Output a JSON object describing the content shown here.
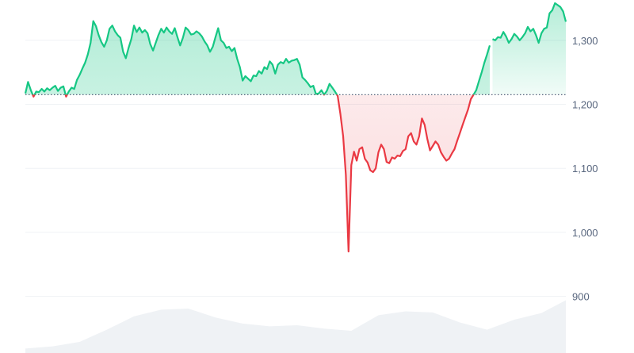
{
  "chart_data": {
    "type": "area",
    "title": "",
    "xlabel": "",
    "ylabel": "",
    "baseline": 1215,
    "ylim": [
      850,
      1360
    ],
    "y_ticks": [
      {
        "value": 900,
        "label": "900"
      },
      {
        "value": 1000,
        "label": "1,000"
      },
      {
        "value": 1100,
        "label": "1,100"
      },
      {
        "value": 1200,
        "label": "1,200"
      },
      {
        "value": 1300,
        "label": "1,300"
      }
    ],
    "grid": true,
    "legend": "none",
    "colors": {
      "up_line": "#16c784",
      "down_line": "#ea3943",
      "up_fill": "#16c784",
      "down_fill": "#ea3943",
      "grid": "#eff2f5",
      "baseline": "#58667e",
      "volume": "#eff2f5",
      "tick_label": "#58667e"
    },
    "series": [
      {
        "type": "line",
        "x": [
          0,
          1,
          2,
          3,
          4,
          5,
          6,
          7,
          8,
          9,
          10,
          11,
          12,
          13,
          14,
          15,
          16,
          17,
          18,
          19,
          20,
          21,
          22,
          23,
          24,
          25,
          26,
          27,
          28,
          29,
          30,
          31,
          32,
          33,
          34,
          35,
          36,
          37,
          38,
          39,
          40,
          41,
          42,
          43,
          44,
          45,
          46,
          47,
          48,
          49,
          50,
          51,
          52,
          53,
          54,
          55,
          56,
          57,
          58,
          59,
          60,
          61,
          62,
          63,
          64,
          65,
          66,
          67,
          68,
          69,
          70,
          71,
          72,
          73,
          74,
          75,
          76,
          77,
          78,
          79,
          80,
          81,
          82,
          83,
          84,
          85,
          86,
          87,
          88,
          89,
          90,
          91,
          92,
          93,
          94,
          95,
          96,
          97,
          98,
          99,
          100,
          101,
          102,
          103,
          104,
          105,
          106,
          107,
          108,
          109,
          110,
          111,
          112,
          113,
          114,
          115,
          116,
          117,
          118,
          119,
          120,
          121,
          122,
          123,
          124,
          125,
          126,
          127,
          128,
          129,
          130,
          131,
          132,
          133,
          134,
          135,
          136,
          137,
          138,
          139,
          140,
          141,
          142,
          143,
          144,
          145,
          146,
          147,
          148,
          149,
          150,
          151,
          152,
          153,
          154,
          155,
          156,
          157,
          158,
          159,
          160,
          161,
          162,
          163,
          164,
          165,
          166,
          167,
          168,
          169,
          170,
          171
        ],
        "values": [
          1217,
          1235,
          1222,
          1212,
          1220,
          1219,
          1224,
          1220,
          1225,
          1222,
          1226,
          1229,
          1221,
          1226,
          1228,
          1212,
          1220,
          1226,
          1224,
          1238,
          1246,
          1256,
          1265,
          1278,
          1296,
          1330,
          1322,
          1308,
          1297,
          1290,
          1300,
          1318,
          1323,
          1314,
          1308,
          1304,
          1282,
          1272,
          1288,
          1302,
          1323,
          1313,
          1320,
          1312,
          1316,
          1311,
          1294,
          1284,
          1296,
          1308,
          1318,
          1312,
          1320,
          1314,
          1310,
          1319,
          1305,
          1292,
          1304,
          1320,
          1316,
          1309,
          1310,
          1314,
          1311,
          1306,
          1298,
          1292,
          1282,
          1290,
          1305,
          1319,
          1300,
          1296,
          1288,
          1290,
          1283,
          1288,
          1271,
          1258,
          1237,
          1244,
          1240,
          1236,
          1245,
          1244,
          1252,
          1248,
          1258,
          1255,
          1267,
          1262,
          1248,
          1262,
          1266,
          1264,
          1271,
          1265,
          1268,
          1269,
          1271,
          1262,
          1242,
          1238,
          1233,
          1227,
          1229,
          1216,
          1217,
          1222,
          1215,
          1221,
          1232,
          1226,
          1220,
          1213,
          1185,
          1150,
          1090,
          970,
          1105,
          1126,
          1112,
          1130,
          1133,
          1115,
          1109,
          1097,
          1094,
          1100,
          1125,
          1137,
          1130,
          1110,
          1108,
          1117,
          1115,
          1120,
          1119,
          1127,
          1130,
          1150,
          1155,
          1142,
          1137,
          1150,
          1178,
          1168,
          1146,
          1128,
          1135,
          1142,
          1137,
          1125,
          1118,
          1112,
          1115,
          1123,
          1130,
          1143,
          1155,
          1168,
          1180,
          1192,
          1208,
          1215,
          1222,
          1236,
          1250,
          1265,
          1278,
          1292
        ]
      },
      {
        "type": "line",
        "x": [
          172,
          173,
          174,
          175,
          176,
          177,
          178,
          179,
          180,
          181,
          182,
          183,
          184,
          185,
          186,
          187,
          188,
          189,
          190,
          191,
          192,
          193,
          194,
          195,
          196,
          197,
          198,
          199
        ],
        "values": [
          1302,
          1300,
          1305,
          1304,
          1313,
          1306,
          1296,
          1302,
          1310,
          1306,
          1300,
          1305,
          1311,
          1321,
          1314,
          1318,
          1308,
          1296,
          1311,
          1318,
          1320,
          1342,
          1347,
          1358,
          1355,
          1352,
          1345,
          1329
        ]
      }
    ],
    "volume": [
      {
        "x": 0,
        "v": 0.08
      },
      {
        "x": 10,
        "v": 0.12
      },
      {
        "x": 20,
        "v": 0.2
      },
      {
        "x": 30,
        "v": 0.42
      },
      {
        "x": 40,
        "v": 0.66
      },
      {
        "x": 50,
        "v": 0.78
      },
      {
        "x": 60,
        "v": 0.8
      },
      {
        "x": 70,
        "v": 0.64
      },
      {
        "x": 80,
        "v": 0.53
      },
      {
        "x": 90,
        "v": 0.48
      },
      {
        "x": 100,
        "v": 0.5
      },
      {
        "x": 110,
        "v": 0.44
      },
      {
        "x": 120,
        "v": 0.4
      },
      {
        "x": 130,
        "v": 0.68
      },
      {
        "x": 140,
        "v": 0.75
      },
      {
        "x": 150,
        "v": 0.73
      },
      {
        "x": 160,
        "v": 0.55
      },
      {
        "x": 170,
        "v": 0.42
      },
      {
        "x": 180,
        "v": 0.6
      },
      {
        "x": 190,
        "v": 0.72
      },
      {
        "x": 199,
        "v": 0.95
      }
    ]
  }
}
